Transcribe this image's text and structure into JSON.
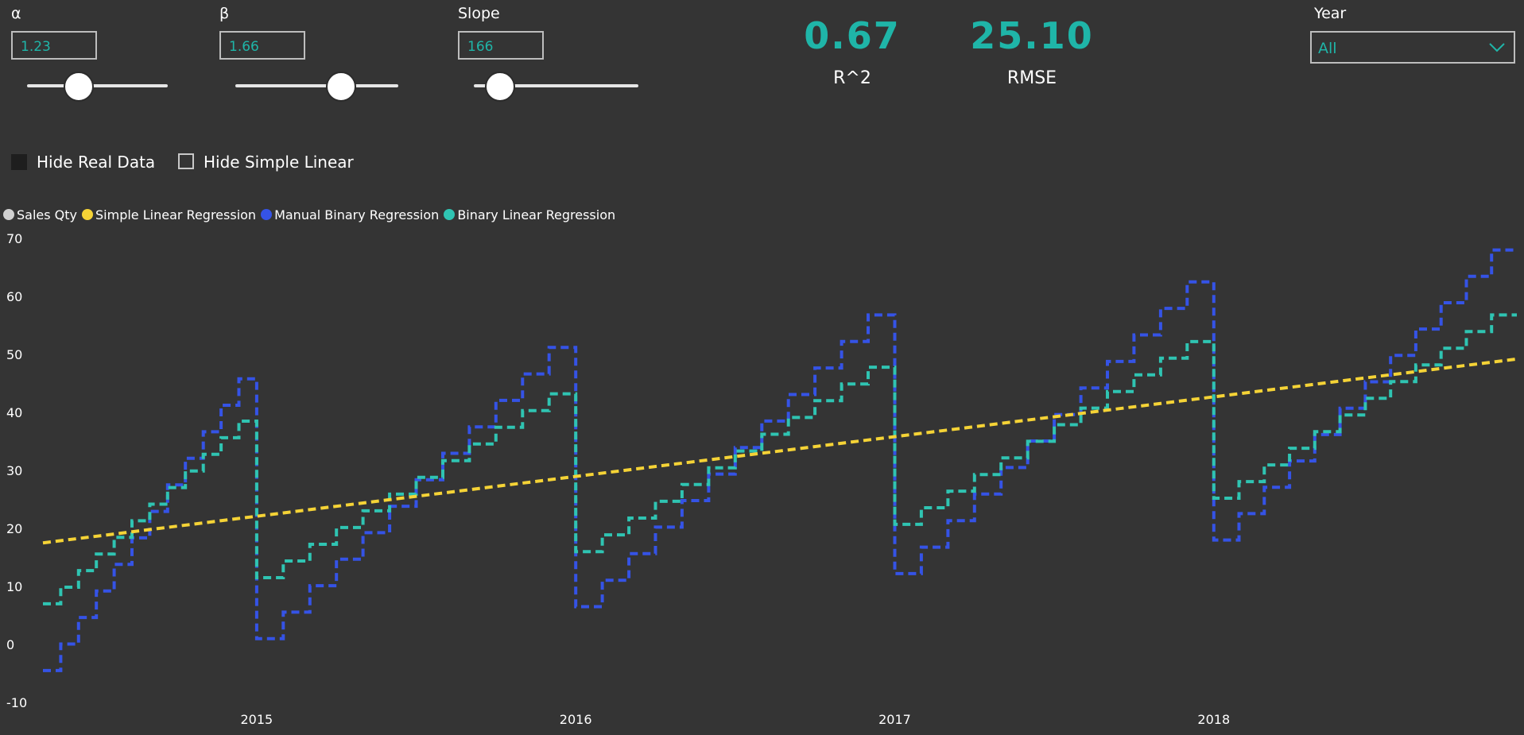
{
  "params": {
    "alpha": {
      "label": "α",
      "value": "1.23",
      "fraction": 0.37
    },
    "beta": {
      "label": "β",
      "value": "1.66",
      "fraction": 0.65
    },
    "slope": {
      "label": "Slope",
      "value": "166",
      "fraction": 0.16
    }
  },
  "kpis": {
    "r2": {
      "value": "0.67",
      "label": "R^2"
    },
    "rmse": {
      "value": "25.10",
      "label": "RMSE"
    }
  },
  "year_filter": {
    "label": "Year",
    "selected": "All",
    "icon": "chevron-down-icon"
  },
  "toggles": {
    "hide_real": {
      "label": "Hide Real Data",
      "checked": true
    },
    "hide_simple": {
      "label": "Hide Simple Linear",
      "checked": false
    }
  },
  "colors": {
    "accent": "#1fb5a8",
    "sales": "#d0d0d0",
    "simple": "#f5d336",
    "manual": "#3553e6",
    "binary": "#2fc4b2"
  },
  "chart_data": {
    "type": "line",
    "title": "",
    "xlabel": "",
    "ylabel": "",
    "ylim": [
      -10,
      70
    ],
    "yticks": [
      70,
      60,
      50,
      40,
      30,
      20,
      10,
      0,
      -10
    ],
    "xlim": [
      2014.33,
      2018.95
    ],
    "xticks": [
      "2015",
      "2016",
      "2017",
      "2018"
    ],
    "legend": {
      "position": "top-left",
      "items": [
        "Sales Qty",
        "Simple Linear Regression",
        "Manual Binary Regression",
        "Binary Linear Regression"
      ]
    },
    "series": [
      {
        "name": "Simple Linear Regression",
        "style": "dashed",
        "start": [
          2014.33,
          17.5
        ],
        "end": [
          2018.95,
          49.2
        ]
      },
      {
        "name": "Manual Binary Regression",
        "style": "dashed-step",
        "segments": [
          {
            "x0": 2014.33,
            "y0": -4.5,
            "y1": 45.8
          },
          {
            "x0": 2015.0,
            "y0": 1.0,
            "y1": 51.2
          },
          {
            "x0": 2016.0,
            "y0": 6.5,
            "y1": 56.8
          },
          {
            "x0": 2017.0,
            "y0": 12.2,
            "y1": 62.5
          },
          {
            "x0": 2018.0,
            "y0": 18.0,
            "y1": 68.0,
            "x1": 2018.95
          }
        ]
      },
      {
        "name": "Binary Linear Regression",
        "style": "dashed-step",
        "segments": [
          {
            "x0": 2014.33,
            "y0": 7.0,
            "y1": 38.5
          },
          {
            "x0": 2015.0,
            "y0": 11.5,
            "y1": 43.2
          },
          {
            "x0": 2016.0,
            "y0": 16.0,
            "y1": 47.8
          },
          {
            "x0": 2017.0,
            "y0": 20.7,
            "y1": 52.2
          },
          {
            "x0": 2018.0,
            "y0": 25.2,
            "y1": 56.8,
            "x1": 2018.95
          }
        ]
      }
    ]
  }
}
